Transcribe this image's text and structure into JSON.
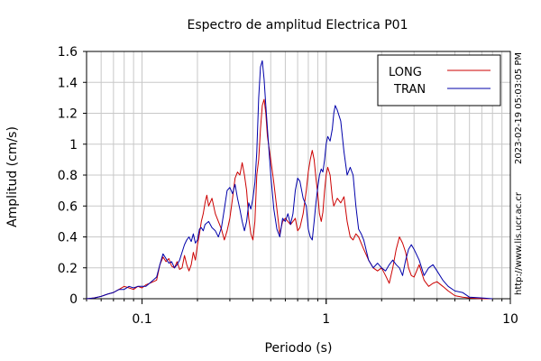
{
  "chart_data": {
    "type": "line",
    "title": "Espectro de amplitud Electrica P01",
    "xlabel": "Periodo (s)",
    "ylabel": "Amplitud (cm/s)",
    "xscale": "log",
    "xlim": [
      0.05,
      10
    ],
    "ylim": [
      0,
      1.6
    ],
    "x_tick_labels": [
      {
        "value": 0.1,
        "label": "0.1"
      },
      {
        "value": 1,
        "label": "1"
      },
      {
        "value": 10,
        "label": "10"
      }
    ],
    "y_ticks": [
      0,
      0.2,
      0.4,
      0.6,
      0.8,
      1.0,
      1.2,
      1.4,
      1.6
    ],
    "y_tick_labels": [
      "0",
      "0.2",
      "0.4",
      "0.6",
      "0.8",
      "1",
      "1.2",
      "1.4",
      "1.6"
    ],
    "grid": true,
    "legend_position": "top-right",
    "side_text_top": "2023-02-19 05:03:05 PM",
    "side_text_bottom": "http://www.lis.ucr.ac.cr",
    "series": [
      {
        "name": "LONG",
        "color": "#cc0000",
        "points": [
          [
            0.05,
            0.0
          ],
          [
            0.055,
            0.005
          ],
          [
            0.06,
            0.015
          ],
          [
            0.065,
            0.03
          ],
          [
            0.07,
            0.04
          ],
          [
            0.075,
            0.06
          ],
          [
            0.08,
            0.08
          ],
          [
            0.085,
            0.07
          ],
          [
            0.09,
            0.06
          ],
          [
            0.095,
            0.08
          ],
          [
            0.1,
            0.07
          ],
          [
            0.105,
            0.09
          ],
          [
            0.11,
            0.1
          ],
          [
            0.12,
            0.12
          ],
          [
            0.125,
            0.22
          ],
          [
            0.13,
            0.27
          ],
          [
            0.135,
            0.24
          ],
          [
            0.14,
            0.26
          ],
          [
            0.145,
            0.21
          ],
          [
            0.15,
            0.2
          ],
          [
            0.155,
            0.24
          ],
          [
            0.16,
            0.19
          ],
          [
            0.165,
            0.2
          ],
          [
            0.17,
            0.28
          ],
          [
            0.175,
            0.22
          ],
          [
            0.18,
            0.18
          ],
          [
            0.185,
            0.22
          ],
          [
            0.19,
            0.3
          ],
          [
            0.195,
            0.25
          ],
          [
            0.2,
            0.35
          ],
          [
            0.205,
            0.42
          ],
          [
            0.21,
            0.5
          ],
          [
            0.215,
            0.55
          ],
          [
            0.22,
            0.62
          ],
          [
            0.225,
            0.67
          ],
          [
            0.23,
            0.6
          ],
          [
            0.24,
            0.65
          ],
          [
            0.25,
            0.55
          ],
          [
            0.26,
            0.5
          ],
          [
            0.27,
            0.45
          ],
          [
            0.28,
            0.38
          ],
          [
            0.29,
            0.44
          ],
          [
            0.3,
            0.52
          ],
          [
            0.31,
            0.65
          ],
          [
            0.32,
            0.78
          ],
          [
            0.33,
            0.82
          ],
          [
            0.34,
            0.8
          ],
          [
            0.35,
            0.88
          ],
          [
            0.36,
            0.8
          ],
          [
            0.37,
            0.7
          ],
          [
            0.38,
            0.52
          ],
          [
            0.39,
            0.42
          ],
          [
            0.4,
            0.38
          ],
          [
            0.41,
            0.5
          ],
          [
            0.42,
            0.8
          ],
          [
            0.43,
            0.9
          ],
          [
            0.44,
            1.1
          ],
          [
            0.45,
            1.25
          ],
          [
            0.46,
            1.29
          ],
          [
            0.47,
            1.2
          ],
          [
            0.48,
            1.05
          ],
          [
            0.5,
            0.9
          ],
          [
            0.52,
            0.75
          ],
          [
            0.54,
            0.58
          ],
          [
            0.56,
            0.42
          ],
          [
            0.58,
            0.5
          ],
          [
            0.6,
            0.52
          ],
          [
            0.62,
            0.5
          ],
          [
            0.64,
            0.48
          ],
          [
            0.66,
            0.5
          ],
          [
            0.68,
            0.52
          ],
          [
            0.7,
            0.44
          ],
          [
            0.72,
            0.46
          ],
          [
            0.75,
            0.55
          ],
          [
            0.78,
            0.7
          ],
          [
            0.8,
            0.82
          ],
          [
            0.82,
            0.9
          ],
          [
            0.84,
            0.96
          ],
          [
            0.86,
            0.9
          ],
          [
            0.88,
            0.78
          ],
          [
            0.9,
            0.68
          ],
          [
            0.92,
            0.55
          ],
          [
            0.94,
            0.5
          ],
          [
            0.96,
            0.56
          ],
          [
            0.98,
            0.7
          ],
          [
            1.0,
            0.8
          ],
          [
            1.02,
            0.85
          ],
          [
            1.05,
            0.8
          ],
          [
            1.08,
            0.65
          ],
          [
            1.1,
            0.6
          ],
          [
            1.15,
            0.65
          ],
          [
            1.2,
            0.62
          ],
          [
            1.25,
            0.66
          ],
          [
            1.3,
            0.5
          ],
          [
            1.35,
            0.4
          ],
          [
            1.4,
            0.38
          ],
          [
            1.45,
            0.42
          ],
          [
            1.5,
            0.4
          ],
          [
            1.55,
            0.36
          ],
          [
            1.6,
            0.32
          ],
          [
            1.7,
            0.25
          ],
          [
            1.8,
            0.2
          ],
          [
            1.9,
            0.18
          ],
          [
            2.0,
            0.2
          ],
          [
            2.1,
            0.15
          ],
          [
            2.2,
            0.1
          ],
          [
            2.3,
            0.2
          ],
          [
            2.4,
            0.32
          ],
          [
            2.5,
            0.4
          ],
          [
            2.6,
            0.36
          ],
          [
            2.7,
            0.3
          ],
          [
            2.8,
            0.2
          ],
          [
            2.9,
            0.15
          ],
          [
            3.0,
            0.14
          ],
          [
            3.2,
            0.22
          ],
          [
            3.4,
            0.12
          ],
          [
            3.6,
            0.08
          ],
          [
            3.8,
            0.1
          ],
          [
            4.0,
            0.11
          ],
          [
            4.3,
            0.08
          ],
          [
            4.6,
            0.05
          ],
          [
            5.0,
            0.02
          ],
          [
            5.5,
            0.01
          ],
          [
            6.0,
            0.005
          ],
          [
            7.0,
            0.0
          ],
          [
            8.0,
            0.0
          ]
        ]
      },
      {
        "name": "TRAN",
        "color": "#0000aa",
        "points": [
          [
            0.05,
            0.0
          ],
          [
            0.055,
            0.005
          ],
          [
            0.06,
            0.015
          ],
          [
            0.065,
            0.03
          ],
          [
            0.07,
            0.04
          ],
          [
            0.075,
            0.06
          ],
          [
            0.08,
            0.06
          ],
          [
            0.085,
            0.08
          ],
          [
            0.09,
            0.07
          ],
          [
            0.095,
            0.08
          ],
          [
            0.1,
            0.08
          ],
          [
            0.105,
            0.08
          ],
          [
            0.11,
            0.1
          ],
          [
            0.12,
            0.14
          ],
          [
            0.125,
            0.22
          ],
          [
            0.13,
            0.29
          ],
          [
            0.135,
            0.26
          ],
          [
            0.14,
            0.23
          ],
          [
            0.145,
            0.24
          ],
          [
            0.15,
            0.2
          ],
          [
            0.155,
            0.22
          ],
          [
            0.16,
            0.25
          ],
          [
            0.165,
            0.3
          ],
          [
            0.17,
            0.35
          ],
          [
            0.175,
            0.38
          ],
          [
            0.18,
            0.4
          ],
          [
            0.185,
            0.37
          ],
          [
            0.19,
            0.42
          ],
          [
            0.195,
            0.36
          ],
          [
            0.2,
            0.38
          ],
          [
            0.205,
            0.45
          ],
          [
            0.21,
            0.46
          ],
          [
            0.215,
            0.44
          ],
          [
            0.22,
            0.48
          ],
          [
            0.23,
            0.5
          ],
          [
            0.24,
            0.46
          ],
          [
            0.25,
            0.44
          ],
          [
            0.26,
            0.4
          ],
          [
            0.27,
            0.46
          ],
          [
            0.28,
            0.58
          ],
          [
            0.29,
            0.7
          ],
          [
            0.3,
            0.72
          ],
          [
            0.31,
            0.68
          ],
          [
            0.32,
            0.74
          ],
          [
            0.33,
            0.65
          ],
          [
            0.34,
            0.58
          ],
          [
            0.35,
            0.5
          ],
          [
            0.36,
            0.44
          ],
          [
            0.37,
            0.5
          ],
          [
            0.38,
            0.62
          ],
          [
            0.39,
            0.58
          ],
          [
            0.4,
            0.65
          ],
          [
            0.41,
            0.75
          ],
          [
            0.42,
            0.95
          ],
          [
            0.43,
            1.3
          ],
          [
            0.44,
            1.5
          ],
          [
            0.45,
            1.54
          ],
          [
            0.46,
            1.42
          ],
          [
            0.47,
            1.25
          ],
          [
            0.48,
            1.1
          ],
          [
            0.5,
            0.8
          ],
          [
            0.52,
            0.58
          ],
          [
            0.54,
            0.45
          ],
          [
            0.56,
            0.4
          ],
          [
            0.58,
            0.52
          ],
          [
            0.6,
            0.5
          ],
          [
            0.62,
            0.55
          ],
          [
            0.64,
            0.48
          ],
          [
            0.66,
            0.55
          ],
          [
            0.68,
            0.7
          ],
          [
            0.7,
            0.78
          ],
          [
            0.72,
            0.76
          ],
          [
            0.75,
            0.65
          ],
          [
            0.78,
            0.6
          ],
          [
            0.8,
            0.45
          ],
          [
            0.82,
            0.4
          ],
          [
            0.84,
            0.38
          ],
          [
            0.86,
            0.5
          ],
          [
            0.88,
            0.62
          ],
          [
            0.9,
            0.72
          ],
          [
            0.92,
            0.8
          ],
          [
            0.94,
            0.84
          ],
          [
            0.96,
            0.82
          ],
          [
            0.98,
            0.9
          ],
          [
            1.0,
            1.0
          ],
          [
            1.02,
            1.05
          ],
          [
            1.05,
            1.02
          ],
          [
            1.08,
            1.1
          ],
          [
            1.1,
            1.2
          ],
          [
            1.12,
            1.25
          ],
          [
            1.15,
            1.22
          ],
          [
            1.2,
            1.15
          ],
          [
            1.25,
            0.95
          ],
          [
            1.3,
            0.8
          ],
          [
            1.35,
            0.85
          ],
          [
            1.4,
            0.8
          ],
          [
            1.45,
            0.6
          ],
          [
            1.5,
            0.45
          ],
          [
            1.55,
            0.42
          ],
          [
            1.6,
            0.38
          ],
          [
            1.7,
            0.25
          ],
          [
            1.8,
            0.2
          ],
          [
            1.9,
            0.23
          ],
          [
            2.0,
            0.2
          ],
          [
            2.1,
            0.18
          ],
          [
            2.2,
            0.22
          ],
          [
            2.3,
            0.25
          ],
          [
            2.4,
            0.22
          ],
          [
            2.5,
            0.2
          ],
          [
            2.6,
            0.15
          ],
          [
            2.7,
            0.25
          ],
          [
            2.8,
            0.32
          ],
          [
            2.9,
            0.35
          ],
          [
            3.0,
            0.32
          ],
          [
            3.2,
            0.25
          ],
          [
            3.4,
            0.15
          ],
          [
            3.6,
            0.2
          ],
          [
            3.8,
            0.22
          ],
          [
            4.0,
            0.18
          ],
          [
            4.3,
            0.12
          ],
          [
            4.6,
            0.08
          ],
          [
            5.0,
            0.05
          ],
          [
            5.5,
            0.04
          ],
          [
            6.0,
            0.01
          ],
          [
            7.0,
            0.005
          ],
          [
            8.0,
            0.0
          ]
        ]
      }
    ]
  }
}
